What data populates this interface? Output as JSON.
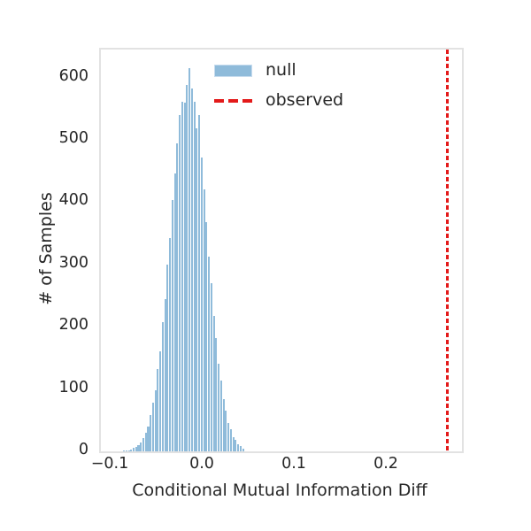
{
  "figure": {
    "background": "#ffffff",
    "text_color": "#262626",
    "spine_color": "#e2e2e2"
  },
  "legend": {
    "position": "upper center (inside plot)",
    "frame": false,
    "items": [
      {
        "label": "null",
        "swatch": "filled-patch",
        "color": "#8fbbda"
      },
      {
        "label": "observed",
        "swatch": "dashed-line",
        "color": "#e31a1a"
      }
    ]
  },
  "chart_data": {
    "type": "bar",
    "subtype": "histogram",
    "title": "",
    "xlabel": "Conditional Mutual Information Diff",
    "ylabel": "# of Samples",
    "xlim": [
      -0.1115,
      0.2808
    ],
    "ylim": [
      0,
      645
    ],
    "grid": false,
    "x_ticks": {
      "values": [
        -0.1,
        0.0,
        0.1,
        0.2
      ],
      "labels": [
        "−0.1",
        "0.0",
        "0.1",
        "0.2"
      ]
    },
    "y_ticks": {
      "values": [
        0,
        100,
        200,
        300,
        400,
        500,
        600
      ],
      "labels": [
        "0",
        "100",
        "200",
        "300",
        "400",
        "500",
        "600"
      ]
    },
    "histogram": {
      "series_name": "null",
      "color": "#8fbbda",
      "bin_start": -0.08782,
      "bin_width": 0.00264,
      "counts": [
        2,
        1,
        2,
        3,
        5,
        7,
        10,
        14,
        22,
        30,
        40,
        58,
        78,
        98,
        132,
        160,
        207,
        245,
        300,
        342,
        404,
        446,
        494,
        540,
        561,
        560,
        588,
        615,
        582,
        561,
        518,
        540,
        472,
        420,
        368,
        312,
        270,
        218,
        182,
        140,
        114,
        84,
        66,
        46,
        35,
        23,
        18,
        11,
        8,
        4
      ]
    },
    "observed_line": {
      "series_name": "observed",
      "value": 0.265,
      "color": "#e31a1a",
      "style": "dashed",
      "orientation": "vertical"
    }
  }
}
